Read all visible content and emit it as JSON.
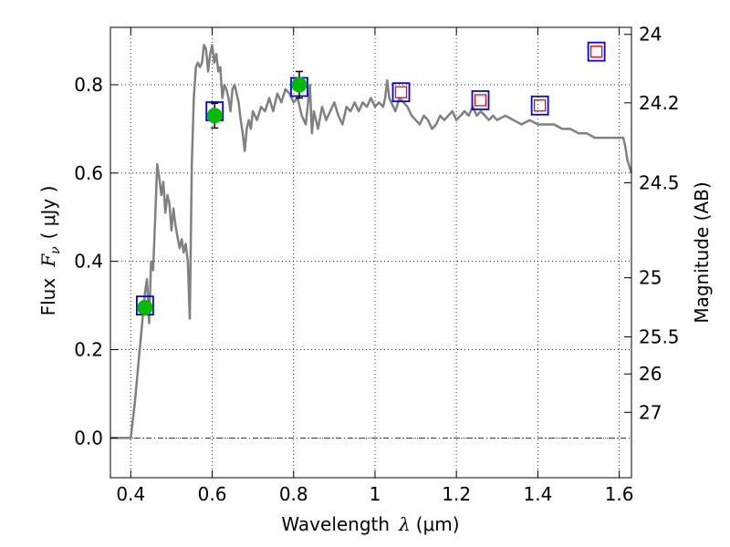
{
  "chart_data": {
    "type": "line",
    "xlabel": {
      "text": "Wavelength",
      "symbol": "λ",
      "unit": "(μm)"
    },
    "ylabel": {
      "text": "Flux",
      "symbol": "F",
      "subscript": "ν",
      "unit": "( μJy )"
    },
    "y2label": "Magnitude (AB)",
    "xlim": [
      0.35,
      1.63
    ],
    "ylim": [
      -0.09,
      0.93
    ],
    "x_ticks": [
      {
        "v": 0.4,
        "label": "0.4"
      },
      {
        "v": 0.6,
        "label": "0.6"
      },
      {
        "v": 0.8,
        "label": "0.8"
      },
      {
        "v": 1.0,
        "label": "1"
      },
      {
        "v": 1.2,
        "label": "1.2"
      },
      {
        "v": 1.4,
        "label": "1.4"
      },
      {
        "v": 1.6,
        "label": "1.6"
      }
    ],
    "y_ticks": [
      {
        "v": 0.0,
        "label": "0.0"
      },
      {
        "v": 0.2,
        "label": "0.2"
      },
      {
        "v": 0.4,
        "label": "0.4"
      },
      {
        "v": 0.6,
        "label": "0.6"
      },
      {
        "v": 0.8,
        "label": "0.8"
      }
    ],
    "y2_ticks": [
      {
        "flux": 0.914,
        "label": "24"
      },
      {
        "flux": 0.759,
        "label": "24.2"
      },
      {
        "flux": 0.578,
        "label": "24.5"
      },
      {
        "flux": 0.363,
        "label": "25"
      },
      {
        "flux": 0.229,
        "label": "25.5"
      },
      {
        "flux": 0.145,
        "label": "26"
      },
      {
        "flux": 0.058,
        "label": "27"
      }
    ],
    "grid": true,
    "zero_line": true,
    "colors": {
      "model": "#808080",
      "detection": "#00bb00",
      "model_box": "#0000ff",
      "upper_limit": "#ff0000",
      "errorbar": "#000000"
    },
    "series": [
      {
        "kind": "line",
        "points": [
          [
            0.35,
            0.0
          ],
          [
            0.4,
            0.0
          ],
          [
            0.41,
            0.08
          ],
          [
            0.42,
            0.18
          ],
          [
            0.43,
            0.28
          ],
          [
            0.435,
            0.33
          ],
          [
            0.44,
            0.36
          ],
          [
            0.445,
            0.26
          ],
          [
            0.45,
            0.4
          ],
          [
            0.455,
            0.38
          ],
          [
            0.46,
            0.5
          ],
          [
            0.465,
            0.62
          ],
          [
            0.47,
            0.59
          ],
          [
            0.475,
            0.55
          ],
          [
            0.48,
            0.58
          ],
          [
            0.485,
            0.51
          ],
          [
            0.49,
            0.55
          ],
          [
            0.495,
            0.53
          ],
          [
            0.5,
            0.47
          ],
          [
            0.505,
            0.52
          ],
          [
            0.51,
            0.48
          ],
          [
            0.52,
            0.43
          ],
          [
            0.525,
            0.45
          ],
          [
            0.53,
            0.42
          ],
          [
            0.535,
            0.44
          ],
          [
            0.54,
            0.4
          ],
          [
            0.545,
            0.27
          ],
          [
            0.55,
            0.62
          ],
          [
            0.555,
            0.77
          ],
          [
            0.56,
            0.84
          ],
          [
            0.565,
            0.85
          ],
          [
            0.57,
            0.84
          ],
          [
            0.575,
            0.85
          ],
          [
            0.58,
            0.89
          ],
          [
            0.585,
            0.88
          ],
          [
            0.59,
            0.83
          ],
          [
            0.595,
            0.87
          ],
          [
            0.6,
            0.89
          ],
          [
            0.605,
            0.85
          ],
          [
            0.61,
            0.87
          ],
          [
            0.615,
            0.83
          ],
          [
            0.62,
            0.84
          ],
          [
            0.625,
            0.77
          ],
          [
            0.63,
            0.8
          ],
          [
            0.635,
            0.79
          ],
          [
            0.64,
            0.77
          ],
          [
            0.645,
            0.74
          ],
          [
            0.65,
            0.79
          ],
          [
            0.655,
            0.8
          ],
          [
            0.66,
            0.78
          ],
          [
            0.665,
            0.76
          ],
          [
            0.67,
            0.72
          ],
          [
            0.675,
            0.69
          ],
          [
            0.68,
            0.65
          ],
          [
            0.685,
            0.7
          ],
          [
            0.69,
            0.72
          ],
          [
            0.695,
            0.7
          ],
          [
            0.7,
            0.74
          ],
          [
            0.71,
            0.72
          ],
          [
            0.72,
            0.75
          ],
          [
            0.73,
            0.74
          ],
          [
            0.74,
            0.77
          ],
          [
            0.75,
            0.74
          ],
          [
            0.76,
            0.78
          ],
          [
            0.77,
            0.76
          ],
          [
            0.78,
            0.79
          ],
          [
            0.79,
            0.78
          ],
          [
            0.8,
            0.76
          ],
          [
            0.81,
            0.77
          ],
          [
            0.82,
            0.73
          ],
          [
            0.83,
            0.71
          ],
          [
            0.84,
            0.8
          ],
          [
            0.845,
            0.69
          ],
          [
            0.85,
            0.74
          ],
          [
            0.86,
            0.7
          ],
          [
            0.87,
            0.75
          ],
          [
            0.88,
            0.72
          ],
          [
            0.89,
            0.74
          ],
          [
            0.9,
            0.76
          ],
          [
            0.91,
            0.73
          ],
          [
            0.92,
            0.71
          ],
          [
            0.93,
            0.75
          ],
          [
            0.94,
            0.74
          ],
          [
            0.95,
            0.76
          ],
          [
            0.96,
            0.74
          ],
          [
            0.97,
            0.76
          ],
          [
            0.98,
            0.75
          ],
          [
            0.99,
            0.77
          ],
          [
            1.0,
            0.75
          ],
          [
            1.01,
            0.76
          ],
          [
            1.02,
            0.75
          ],
          [
            1.025,
            0.77
          ],
          [
            1.03,
            0.81
          ],
          [
            1.035,
            0.77
          ],
          [
            1.04,
            0.76
          ],
          [
            1.05,
            0.74
          ],
          [
            1.06,
            0.77
          ],
          [
            1.07,
            0.76
          ],
          [
            1.08,
            0.75
          ],
          [
            1.09,
            0.73
          ],
          [
            1.1,
            0.72
          ],
          [
            1.11,
            0.71
          ],
          [
            1.12,
            0.73
          ],
          [
            1.13,
            0.72
          ],
          [
            1.14,
            0.7
          ],
          [
            1.15,
            0.71
          ],
          [
            1.16,
            0.73
          ],
          [
            1.17,
            0.72
          ],
          [
            1.18,
            0.73
          ],
          [
            1.19,
            0.74
          ],
          [
            1.2,
            0.72
          ],
          [
            1.21,
            0.73
          ],
          [
            1.22,
            0.74
          ],
          [
            1.23,
            0.73
          ],
          [
            1.24,
            0.75
          ],
          [
            1.25,
            0.73
          ],
          [
            1.26,
            0.74
          ],
          [
            1.27,
            0.73
          ],
          [
            1.28,
            0.72
          ],
          [
            1.29,
            0.73
          ],
          [
            1.3,
            0.72
          ],
          [
            1.32,
            0.73
          ],
          [
            1.34,
            0.72
          ],
          [
            1.36,
            0.71
          ],
          [
            1.38,
            0.72
          ],
          [
            1.4,
            0.71
          ],
          [
            1.42,
            0.71
          ],
          [
            1.44,
            0.71
          ],
          [
            1.46,
            0.7
          ],
          [
            1.48,
            0.7
          ],
          [
            1.5,
            0.69
          ],
          [
            1.52,
            0.69
          ],
          [
            1.54,
            0.68
          ],
          [
            1.56,
            0.68
          ],
          [
            1.58,
            0.68
          ],
          [
            1.6,
            0.68
          ],
          [
            1.61,
            0.68
          ],
          [
            1.615,
            0.66
          ],
          [
            1.62,
            0.63
          ],
          [
            1.63,
            0.6
          ]
        ]
      },
      {
        "kind": "detections",
        "points": [
          {
            "x": 0.435,
            "y": 0.295,
            "err": 0.015
          },
          {
            "x": 0.606,
            "y": 0.73,
            "err": 0.028
          },
          {
            "x": 0.814,
            "y": 0.8,
            "err": 0.03
          }
        ]
      },
      {
        "kind": "model_boxes",
        "points": [
          {
            "x": 0.435,
            "y": 0.3
          },
          {
            "x": 0.606,
            "y": 0.74
          },
          {
            "x": 0.814,
            "y": 0.795
          },
          {
            "x": 1.064,
            "y": 0.783
          },
          {
            "x": 1.259,
            "y": 0.765
          },
          {
            "x": 1.405,
            "y": 0.753
          },
          {
            "x": 1.544,
            "y": 0.875
          }
        ]
      },
      {
        "kind": "upper_limits",
        "points": [
          {
            "x": 1.064,
            "y": 0.783
          },
          {
            "x": 1.259,
            "y": 0.765
          },
          {
            "x": 1.405,
            "y": 0.753
          },
          {
            "x": 1.544,
            "y": 0.875
          }
        ]
      }
    ]
  }
}
